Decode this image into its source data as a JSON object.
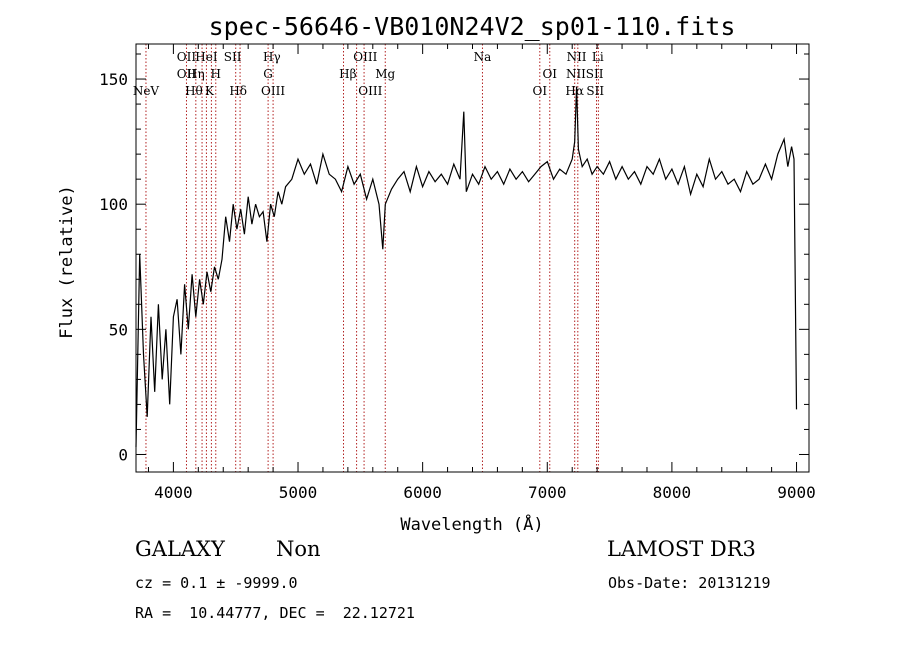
{
  "chart_data": {
    "type": "line",
    "title": "spec-56646-VB010N24V2_sp01-110.fits",
    "xlabel": "Wavelength (Å)",
    "ylabel": "Flux (relative)",
    "xlim": [
      3700,
      9100
    ],
    "ylim": [
      -7,
      164
    ],
    "xticks": [
      4000,
      5000,
      6000,
      7000,
      8000,
      9000
    ],
    "yticks": [
      0,
      50,
      100,
      150
    ],
    "line_color": "#000000",
    "marker_color": "#b22222",
    "grid": false,
    "series": [
      {
        "x": [
          3700,
          3730,
          3760,
          3790,
          3820,
          3850,
          3880,
          3910,
          3940,
          3970,
          4000,
          4030,
          4060,
          4090,
          4120,
          4150,
          4180,
          4210,
          4240,
          4270,
          4300,
          4330,
          4360,
          4390,
          4420,
          4450,
          4480,
          4510,
          4540,
          4570,
          4600,
          4630,
          4660,
          4690,
          4720,
          4750,
          4780,
          4810,
          4840,
          4870,
          4900,
          4950,
          5000,
          5050,
          5100,
          5150,
          5200,
          5250,
          5300,
          5350,
          5400,
          5450,
          5500,
          5550,
          5600,
          5650,
          5680,
          5700,
          5750,
          5800,
          5850,
          5900,
          5950,
          6000,
          6050,
          6100,
          6150,
          6200,
          6250,
          6300,
          6330,
          6350,
          6400,
          6450,
          6500,
          6550,
          6600,
          6650,
          6700,
          6750,
          6800,
          6850,
          6900,
          6950,
          7000,
          7050,
          7100,
          7150,
          7200,
          7220,
          7235,
          7250,
          7280,
          7320,
          7360,
          7400,
          7450,
          7500,
          7550,
          7600,
          7650,
          7700,
          7750,
          7800,
          7850,
          7900,
          7950,
          8000,
          8050,
          8100,
          8150,
          8200,
          8250,
          8300,
          8350,
          8400,
          8450,
          8500,
          8550,
          8600,
          8650,
          8700,
          8750,
          8800,
          8850,
          8900,
          8930,
          8960,
          8980,
          9000
        ],
        "y": [
          3,
          80,
          40,
          15,
          55,
          25,
          60,
          30,
          50,
          20,
          55,
          62,
          40,
          68,
          50,
          72,
          55,
          70,
          60,
          73,
          65,
          75,
          70,
          78,
          95,
          85,
          100,
          90,
          98,
          88,
          103,
          92,
          100,
          95,
          97,
          85,
          100,
          95,
          105,
          100,
          107,
          110,
          118,
          112,
          116,
          108,
          120,
          112,
          110,
          105,
          115,
          108,
          112,
          102,
          110,
          100,
          82,
          100,
          106,
          110,
          113,
          105,
          115,
          107,
          113,
          109,
          112,
          108,
          116,
          110,
          137,
          105,
          112,
          108,
          115,
          110,
          113,
          108,
          114,
          110,
          113,
          109,
          112,
          115,
          117,
          110,
          114,
          112,
          118,
          125,
          147,
          122,
          115,
          118,
          112,
          115,
          112,
          117,
          110,
          115,
          110,
          113,
          108,
          115,
          112,
          118,
          110,
          114,
          108,
          115,
          104,
          112,
          107,
          118,
          110,
          113,
          108,
          110,
          105,
          113,
          108,
          110,
          116,
          110,
          120,
          126,
          115,
          123,
          118,
          18
        ]
      }
    ],
    "line_markers": [
      {
        "x": 3780,
        "labels": [
          {
            "text": "NeV",
            "row": 3
          }
        ]
      },
      {
        "x": 4105,
        "labels": [
          {
            "text": "OII",
            "row": 1
          },
          {
            "text": "OII",
            "row": 2
          }
        ]
      },
      {
        "x": 4180,
        "labels": [
          {
            "text": "Hη",
            "row": 2
          }
        ]
      },
      {
        "x": 4230,
        "labels": []
      },
      {
        "x": 4265,
        "labels": [
          {
            "text": "HeI",
            "row": 1
          }
        ]
      },
      {
        "x": 4305,
        "labels": []
      },
      {
        "x": 4340,
        "labels": []
      },
      {
        "x": 4500,
        "labels": []
      },
      {
        "x": 4535,
        "labels": []
      },
      {
        "x": 4760,
        "labels": []
      },
      {
        "x": 4800,
        "labels": []
      },
      {
        "x": 5365,
        "labels": []
      },
      {
        "x": 5470,
        "labels": []
      },
      {
        "x": 5530,
        "labels": []
      },
      {
        "x": 5700,
        "labels": [
          {
            "text": "Mg",
            "row": 2
          }
        ]
      },
      {
        "x": 6480,
        "labels": [
          {
            "text": "Na",
            "row": 1
          }
        ]
      },
      {
        "x": 6940,
        "labels": [
          {
            "text": "OI",
            "row": 3
          }
        ]
      },
      {
        "x": 7020,
        "labels": [
          {
            "text": "OI",
            "row": 2
          }
        ]
      },
      {
        "x": 7220,
        "labels": []
      },
      {
        "x": 7245,
        "labels": []
      },
      {
        "x": 7395,
        "labels": []
      },
      {
        "x": 7410,
        "labels": []
      }
    ],
    "free_labels": [
      {
        "text": "Hθ",
        "x": 4165,
        "row": 3
      },
      {
        "text": "H",
        "x": 4340,
        "row": 2
      },
      {
        "text": "K",
        "x": 4290,
        "row": 3
      },
      {
        "text": "SII",
        "x": 4475,
        "row": 1
      },
      {
        "text": "Hδ",
        "x": 4520,
        "row": 3
      },
      {
        "text": "Hγ",
        "x": 4790,
        "row": 1
      },
      {
        "text": "G",
        "x": 4760,
        "row": 2
      },
      {
        "text": "OIII",
        "x": 4800,
        "row": 3
      },
      {
        "text": "OIII",
        "x": 5540,
        "row": 1
      },
      {
        "text": "Hβ",
        "x": 5400,
        "row": 2
      },
      {
        "text": "OIII",
        "x": 5580,
        "row": 3
      },
      {
        "text": "NII",
        "x": 7235,
        "row": 1
      },
      {
        "text": "Li",
        "x": 7405,
        "row": 1
      },
      {
        "text": "NII",
        "x": 7230,
        "row": 2
      },
      {
        "text": "SII",
        "x": 7380,
        "row": 2
      },
      {
        "text": "Hα",
        "x": 7220,
        "row": 3
      },
      {
        "text": "SII",
        "x": 7385,
        "row": 3
      }
    ]
  },
  "info": {
    "object_class": "GALAXY",
    "subclass": "Non",
    "survey": "LAMOST DR3",
    "redshift": "cz = 0.1 ± -9999.0",
    "obs_date": "Obs-Date: 20131219",
    "coords": "RA =  10.44777, DEC =  22.12721"
  }
}
